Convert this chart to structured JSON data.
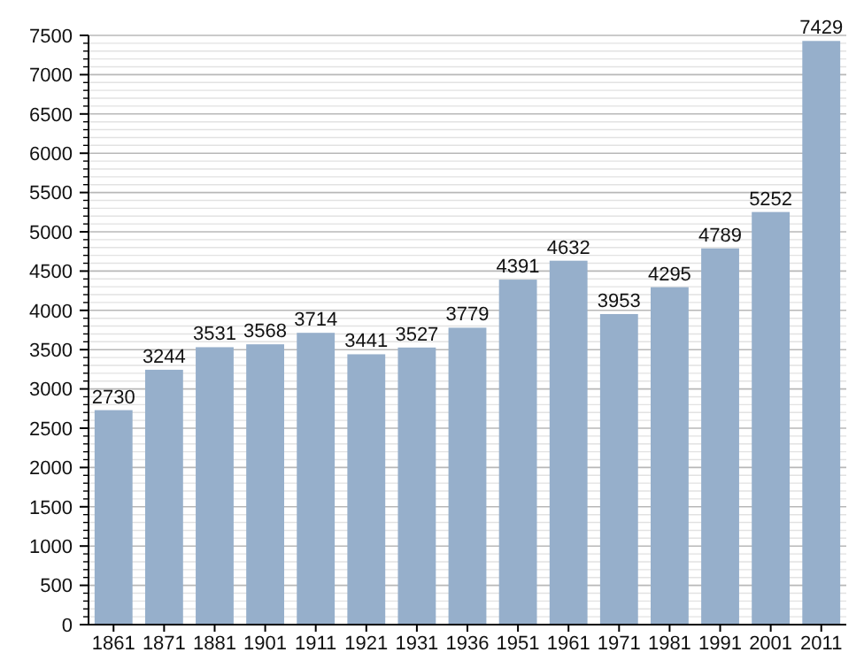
{
  "chart_data": {
    "type": "bar",
    "categories": [
      "1861",
      "1871",
      "1881",
      "1901",
      "1911",
      "1921",
      "1931",
      "1936",
      "1951",
      "1961",
      "1971",
      "1981",
      "1991",
      "2001",
      "2011"
    ],
    "values": [
      2730,
      3244,
      3531,
      3568,
      3714,
      3441,
      3527,
      3779,
      4391,
      4632,
      3953,
      4295,
      4789,
      5252,
      7429
    ],
    "color": "#96afcb",
    "ylim": [
      0,
      7500
    ],
    "yticks": [
      0,
      500,
      1000,
      1500,
      2000,
      2500,
      3000,
      3500,
      4000,
      4500,
      5000,
      5500,
      6000,
      6500,
      7000,
      7500
    ],
    "grid": "y",
    "data_labels": true
  }
}
